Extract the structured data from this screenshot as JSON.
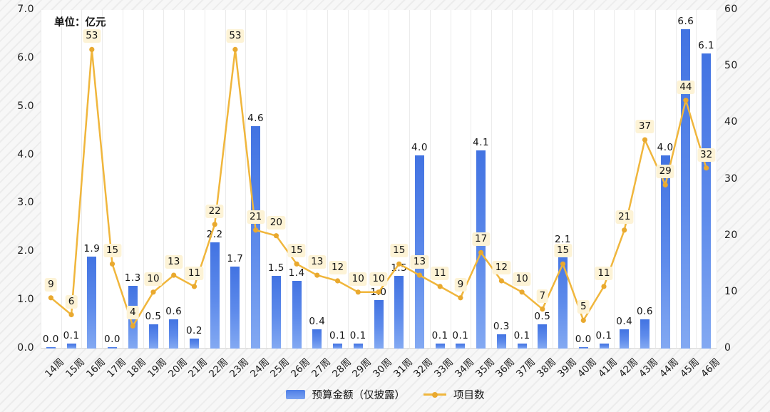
{
  "unit_label": "单位：亿元",
  "legend": {
    "bar_label": "预算金额（仅披露）",
    "line_label": "项目数"
  },
  "colors": {
    "bar_top": "#4273e2",
    "bar_bottom": "#83a9f2",
    "line": "#f0b63c",
    "dot": "#e9a92f",
    "line_label_bg": "#fdf3d6",
    "grid": "#ebebeb",
    "axis_text": "#1c1c1c"
  },
  "chart_data": {
    "type": "bar",
    "subtype": "bar+line combo",
    "title": "",
    "xlabel": "",
    "ylabel_left": "单位：亿元",
    "ylabel_right": "",
    "grid": "vertical-only",
    "legend_position": "bottom-center",
    "categories": [
      "14周",
      "15周",
      "16周",
      "17周",
      "18周",
      "19周",
      "20周",
      "21周",
      "22周",
      "23周",
      "24周",
      "25周",
      "26周",
      "27周",
      "28周",
      "29周",
      "30周",
      "31周",
      "32周",
      "33周",
      "34周",
      "35周",
      "36周",
      "37周",
      "38周",
      "39周",
      "40周",
      "41周",
      "42周",
      "43周",
      "44周",
      "45周",
      "46周"
    ],
    "series": [
      {
        "name": "预算金额（仅披露）",
        "type": "bar",
        "axis": "left",
        "values": [
          0.0,
          0.1,
          1.9,
          0.0,
          1.3,
          0.5,
          0.6,
          0.2,
          2.2,
          1.7,
          4.6,
          1.5,
          1.4,
          0.4,
          0.1,
          0.1,
          1.0,
          1.5,
          4.0,
          0.1,
          0.1,
          4.1,
          0.3,
          0.1,
          0.5,
          2.1,
          0.0,
          0.1,
          0.4,
          0.6,
          4.0,
          6.6,
          6.1
        ]
      },
      {
        "name": "项目数",
        "type": "line",
        "axis": "right",
        "values": [
          9,
          6,
          53,
          15,
          4,
          10,
          13,
          11,
          22,
          53,
          21,
          20,
          15,
          13,
          12,
          10,
          10,
          15,
          13,
          11,
          9,
          17,
          12,
          10,
          7,
          15,
          5,
          11,
          21,
          37,
          29,
          44,
          32
        ]
      }
    ],
    "left_axis": {
      "min": 0,
      "max": 7,
      "ticks": [
        "0.0",
        "1.0",
        "2.0",
        "3.0",
        "4.0",
        "5.0",
        "6.0",
        "7.0"
      ]
    },
    "right_axis": {
      "min": 0,
      "max": 60,
      "ticks": [
        "0",
        "10",
        "20",
        "30",
        "40",
        "50",
        "60"
      ]
    }
  }
}
